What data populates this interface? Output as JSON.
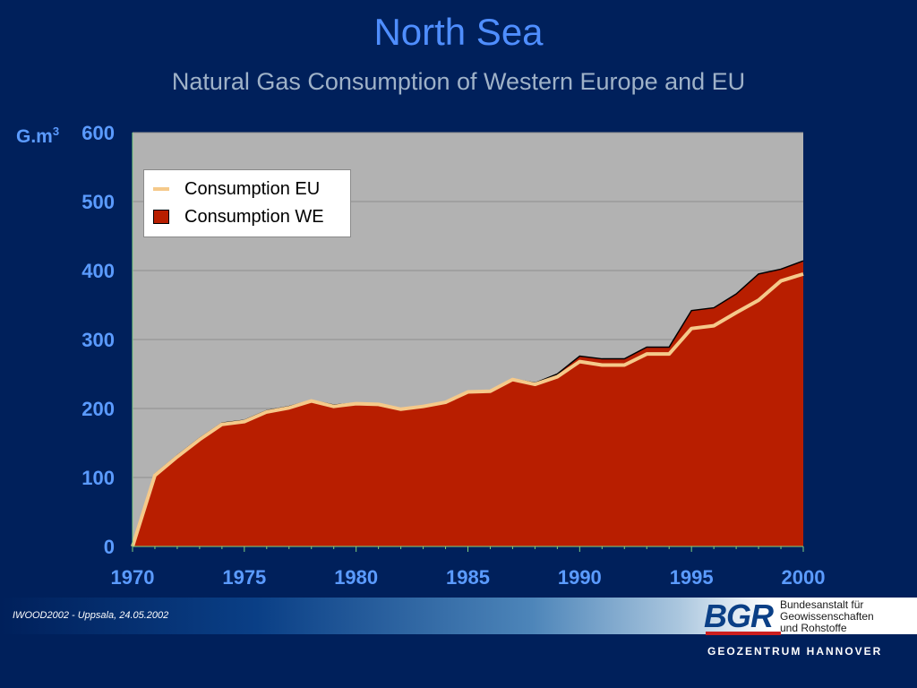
{
  "slide": {
    "title": "North Sea",
    "subtitle": "Natural Gas Consumption of Western Europe and EU",
    "unit_label": "G.m",
    "unit_superscript": "3"
  },
  "legend": {
    "items": [
      {
        "label": "Consumption EU",
        "color": "#f5c98a"
      },
      {
        "label": "Consumption WE",
        "color": "#b81e00"
      }
    ]
  },
  "chart_data": {
    "type": "area",
    "title": "",
    "xlabel": "",
    "ylabel": "G.m³",
    "xlim": [
      1970,
      2000
    ],
    "ylim": [
      0,
      600
    ],
    "x_ticks": [
      "1970",
      "1975",
      "1980",
      "1985",
      "1990",
      "1995",
      "2000"
    ],
    "y_ticks": [
      "0",
      "100",
      "200",
      "300",
      "400",
      "500",
      "600"
    ],
    "grid": true,
    "legend_position": "top-left",
    "plot_background": "#b2b2b2",
    "x": [
      1970,
      1971,
      1972,
      1973,
      1974,
      1975,
      1976,
      1977,
      1978,
      1979,
      1980,
      1981,
      1982,
      1983,
      1984,
      1985,
      1986,
      1987,
      1988,
      1989,
      1990,
      1991,
      1992,
      1993,
      1994,
      1995,
      1996,
      1997,
      1998,
      1999,
      2000
    ],
    "series": [
      {
        "name": "Consumption WE",
        "style": "area",
        "color": "#b81e00",
        "values": [
          0,
          105,
          132,
          157,
          179,
          183,
          197,
          203,
          212,
          205,
          208,
          207,
          200,
          204,
          210,
          225,
          226,
          243,
          237,
          250,
          276,
          272,
          272,
          289,
          289,
          342,
          346,
          366,
          395,
          402,
          414
        ]
      },
      {
        "name": "Consumption EU",
        "style": "line",
        "color": "#f5c98a",
        "values": [
          0,
          103,
          130,
          155,
          177,
          181,
          195,
          201,
          211,
          203,
          207,
          206,
          199,
          203,
          209,
          224,
          225,
          242,
          235,
          246,
          268,
          263,
          263,
          279,
          279,
          316,
          320,
          339,
          357,
          385,
          395
        ]
      }
    ]
  },
  "footer": {
    "event": "IWOOD2002 - Uppsala, 24.05.2002",
    "logo_letters": "BGR",
    "logo_name_lines": [
      "Bundesanstalt für",
      "Geowissenschaften",
      "und Rohstoffe"
    ],
    "organization": "GEOZENTRUM HANNOVER"
  }
}
